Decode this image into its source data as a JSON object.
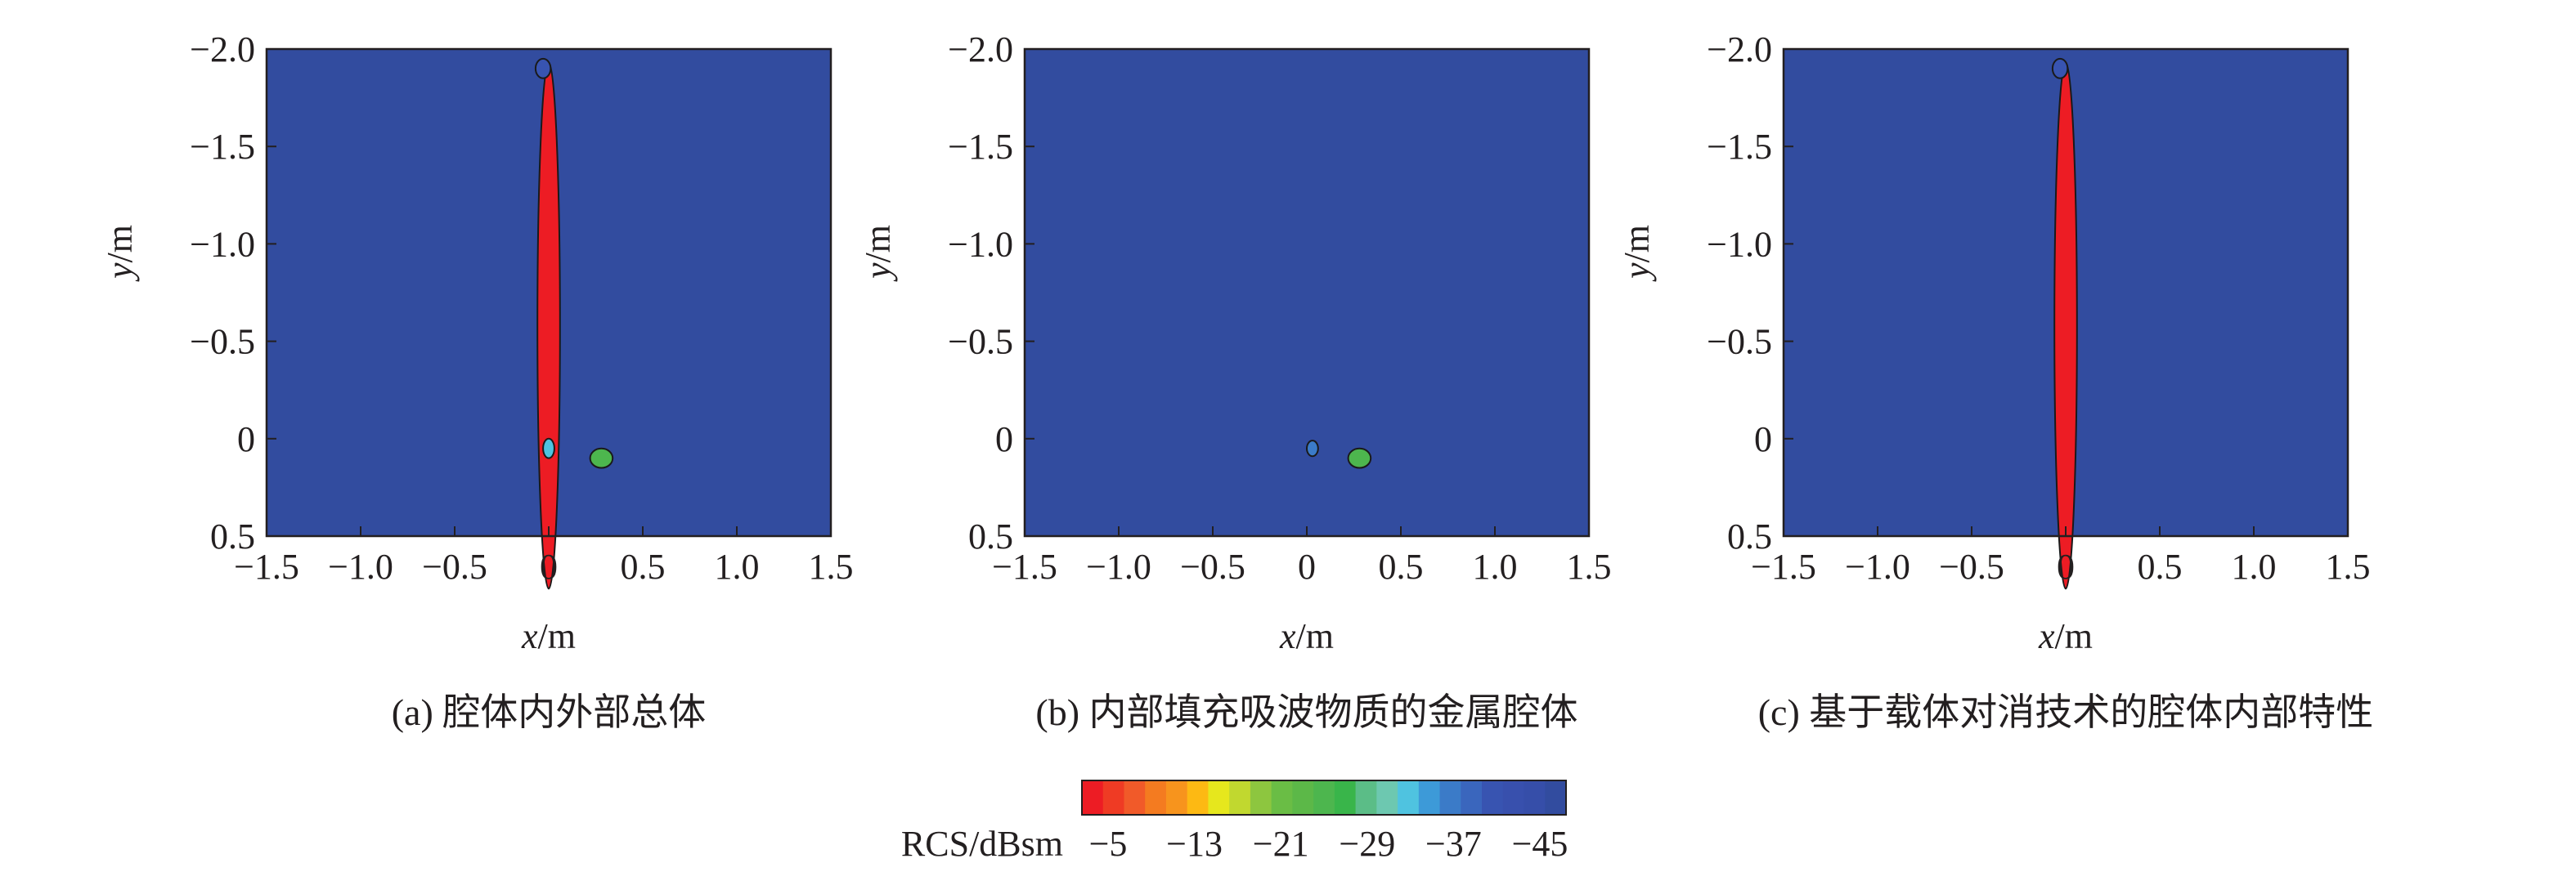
{
  "chart_data": [
    {
      "type": "heatmap",
      "caption": "(a) 腔体内外部总体",
      "xlabel": {
        "var": "x",
        "unit": "/m"
      },
      "ylabel": {
        "var": "y",
        "unit": "/m"
      },
      "xlim": [
        -1.5,
        1.5
      ],
      "ylim": [
        -2.0,
        0.5
      ],
      "y_inverted": true,
      "xticks": [
        "−1.5",
        "−1.0",
        "−0.5",
        "0",
        "0.5",
        "1.0",
        "1.5"
      ],
      "yticks": [
        "−2.0",
        "−1.5",
        "−1.0",
        "−0.5",
        "0",
        "0.5"
      ],
      "background_level_dBsm": -45,
      "hotspots": [
        {
          "x": 0.0,
          "y": -0.58,
          "peak_dBsm": -5,
          "extent_x": 0.06,
          "extent_y": 1.35
        },
        {
          "x": 0.28,
          "y": 0.1,
          "peak_dBsm": -25,
          "extent_x": 0.06,
          "extent_y": 0.05
        },
        {
          "x": 0.0,
          "y": 0.05,
          "peak_dBsm": -33,
          "extent_x": 0.03,
          "extent_y": 0.05
        },
        {
          "x": -0.03,
          "y": -1.9,
          "peak_dBsm": -40,
          "extent_x": 0.04,
          "extent_y": 0.05
        }
      ]
    },
    {
      "type": "heatmap",
      "caption": "(b) 内部填充吸波物质的金属腔体",
      "xlabel": {
        "var": "x",
        "unit": "/m"
      },
      "ylabel": {
        "var": "y",
        "unit": "/m"
      },
      "xlim": [
        -1.5,
        1.5
      ],
      "ylim": [
        -2.0,
        0.5
      ],
      "y_inverted": true,
      "xticks": [
        "−1.5",
        "−1.0",
        "−0.5",
        "0",
        "0.5",
        "1.0",
        "1.5"
      ],
      "yticks": [
        "−2.0",
        "−1.5",
        "−1.0",
        "−0.5",
        "0",
        "0.5"
      ],
      "background_level_dBsm": -45,
      "hotspots": [
        {
          "x": 0.28,
          "y": 0.1,
          "peak_dBsm": -25,
          "extent_x": 0.06,
          "extent_y": 0.05
        },
        {
          "x": 0.03,
          "y": 0.05,
          "peak_dBsm": -35,
          "extent_x": 0.03,
          "extent_y": 0.04
        }
      ]
    },
    {
      "type": "heatmap",
      "caption": "(c) 基于载体对消技术的腔体内部特性",
      "xlabel": {
        "var": "x",
        "unit": "/m"
      },
      "ylabel": {
        "var": "y",
        "unit": "/m"
      },
      "xlim": [
        -1.5,
        1.5
      ],
      "ylim": [
        -2.0,
        0.5
      ],
      "y_inverted": true,
      "xticks": [
        "−1.5",
        "−1.0",
        "−0.5",
        "0",
        "0.5",
        "1.0",
        "1.5"
      ],
      "yticks": [
        "−2.0",
        "−1.5",
        "−1.0",
        "−0.5",
        "0",
        "0.5"
      ],
      "background_level_dBsm": -45,
      "hotspots": [
        {
          "x": 0.0,
          "y": -0.58,
          "peak_dBsm": -5,
          "extent_x": 0.06,
          "extent_y": 1.35
        },
        {
          "x": -0.03,
          "y": -1.9,
          "peak_dBsm": -40,
          "extent_x": 0.04,
          "extent_y": 0.05
        }
      ]
    }
  ],
  "colorbar": {
    "label": "RCS/dBsm",
    "ticks": [
      "−5",
      "−13",
      "−21",
      "−29",
      "−37",
      "−45"
    ],
    "colors": [
      "#ed1c24",
      "#ef3b24",
      "#f15a29",
      "#f47b20",
      "#f7941d",
      "#fdb913",
      "#e6e71d",
      "#c1d82f",
      "#8dc63f",
      "#6abd45",
      "#5cb848",
      "#4db64e",
      "#39b54a",
      "#5bbd87",
      "#6dc8b0",
      "#4fc3e0",
      "#3d9ad8",
      "#3b7bc8",
      "#3a66bd",
      "#3854b1",
      "#3850ad",
      "#364ea9",
      "#324c9f"
    ]
  }
}
